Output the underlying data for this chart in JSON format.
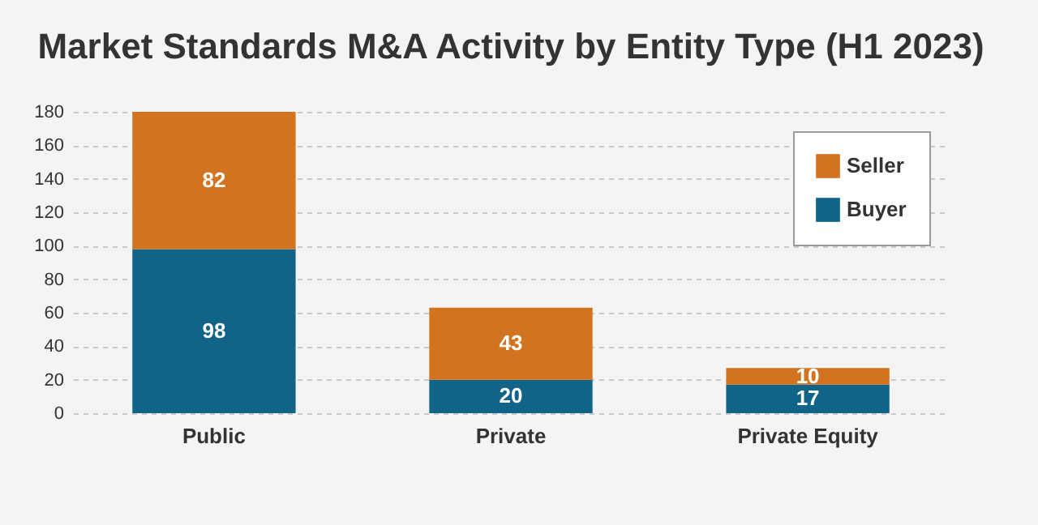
{
  "chart_data": {
    "type": "bar",
    "title": "Market Standards M&A Activity by Entity Type (H1 2023)",
    "categories": [
      "Public",
      "Private",
      "Private Equity"
    ],
    "series": [
      {
        "name": "Buyer",
        "color": "#0f6487",
        "values": [
          98,
          20,
          17
        ]
      },
      {
        "name": "Seller",
        "color": "#d2741f",
        "values": [
          82,
          43,
          10
        ]
      }
    ],
    "stacked": true,
    "ylim": [
      0,
      180
    ],
    "yticks": [
      0,
      20,
      40,
      60,
      80,
      100,
      120,
      140,
      160,
      180
    ],
    "grid": "y",
    "legend": "top right",
    "data_labels": true
  }
}
